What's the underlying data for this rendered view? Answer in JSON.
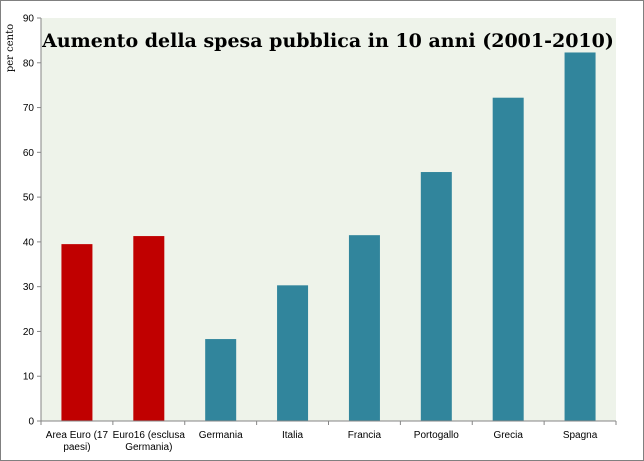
{
  "chart_data": {
    "type": "bar",
    "title": "Aumento della spesa pubblica in 10 anni (2001-2010)",
    "ylabel": "per cento",
    "xlabel": "",
    "ylim": [
      0,
      90
    ],
    "yticks": [
      0,
      10,
      20,
      30,
      40,
      50,
      60,
      70,
      80,
      90
    ],
    "grid": false,
    "legend": "none",
    "categories": [
      [
        "Area Euro (17",
        "paesi)"
      ],
      [
        "Euro16 (esclusa",
        "Germania)"
      ],
      [
        "Germania"
      ],
      [
        "Italia"
      ],
      [
        "Francia"
      ],
      [
        "Portogallo"
      ],
      [
        "Grecia"
      ],
      [
        "Spagna"
      ]
    ],
    "values": [
      39.5,
      41.3,
      18.3,
      30.3,
      41.5,
      55.6,
      72.2,
      82.3
    ],
    "bar_colors": [
      "#c00000",
      "#c00000",
      "#31859c",
      "#31859c",
      "#31859c",
      "#31859c",
      "#31859c",
      "#31859c"
    ],
    "plot_background": "#eef3ea"
  }
}
